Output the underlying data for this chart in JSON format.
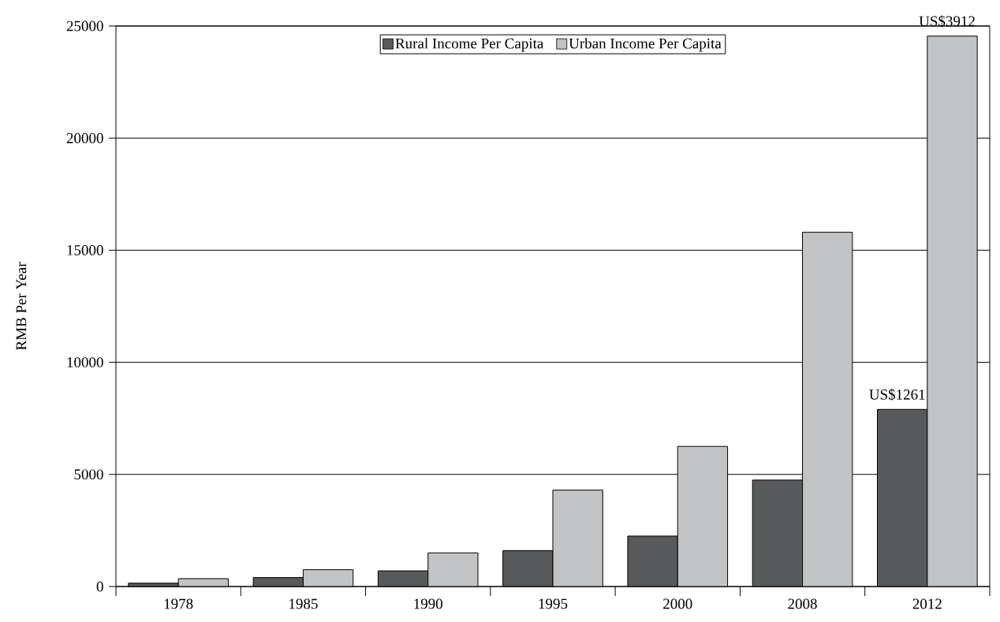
{
  "chart_data": {
    "type": "bar",
    "ylabel": "RMB Per Year",
    "categories": [
      "1978",
      "1985",
      "1990",
      "1995",
      "2000",
      "2008",
      "2012"
    ],
    "series": [
      {
        "name": "Rural Income Per Capita",
        "color": "#58595b",
        "values": [
          150,
          400,
          700,
          1600,
          2250,
          4750,
          7900
        ]
      },
      {
        "name": "Urban Income Per Capita",
        "color": "#c2c3c5",
        "values": [
          350,
          750,
          1500,
          4300,
          6250,
          15800,
          24550
        ]
      }
    ],
    "ylim": [
      0,
      25000
    ],
    "yticks": [
      0,
      5000,
      10000,
      15000,
      20000,
      25000
    ],
    "grid": "y",
    "legend": "top",
    "annotations": [
      {
        "text": "US$1261",
        "x": "2012",
        "y": 7900
      },
      {
        "text": "US$3912",
        "x": "2012",
        "y": 24550
      }
    ]
  }
}
